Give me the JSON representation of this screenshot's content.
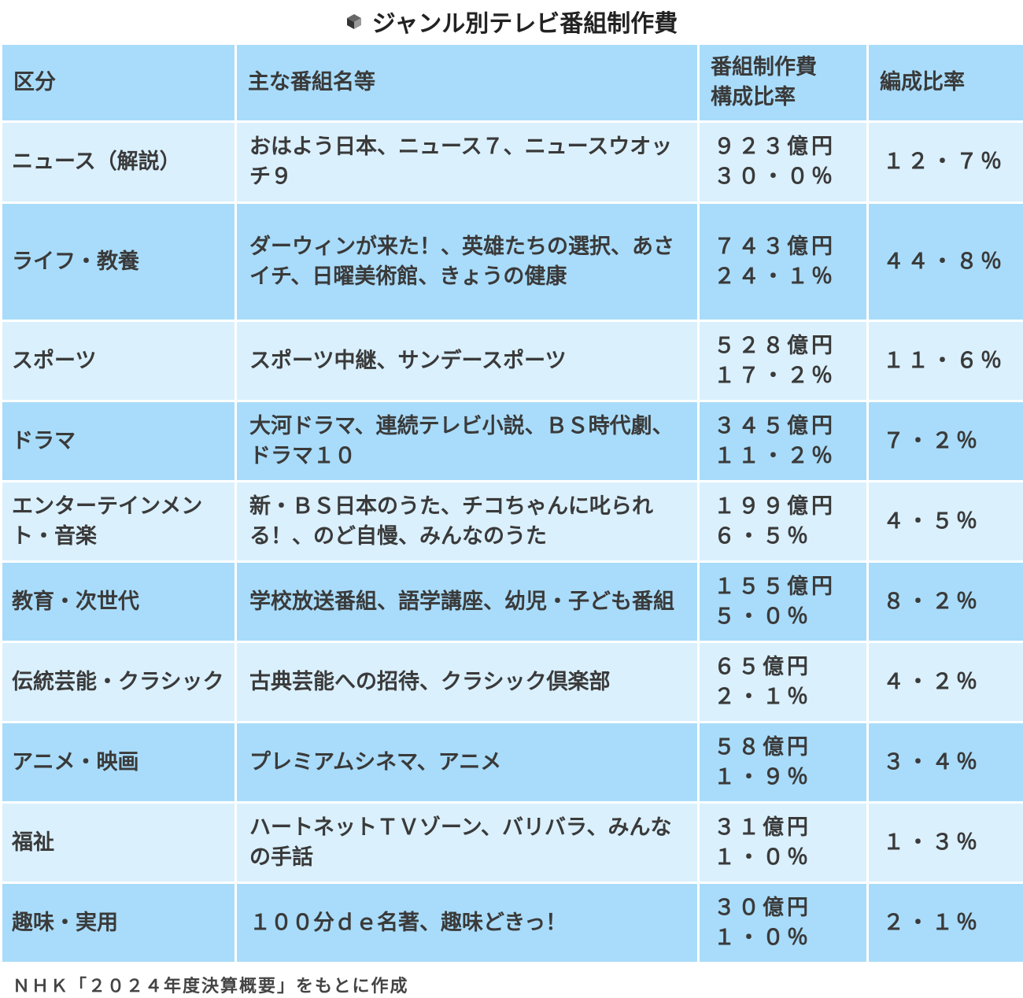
{
  "title": "ジャンル別テレビ番組制作費",
  "headers": {
    "category": "区分",
    "programs": "主な番組名等",
    "cost_line1": "番組制作費",
    "cost_line2": "構成比率",
    "ratio": "編成比率"
  },
  "rows": [
    {
      "category": "ニュース（解説）",
      "programs": "おはよう日本、ニュース７、ニュースウオッチ９",
      "cost": "９２３億円",
      "cost_ratio": "３０・０％",
      "ratio": "１２・７％"
    },
    {
      "category": "ライフ・教養",
      "programs": "ダーウィンが来た！、英雄たちの選択、あさイチ、日曜美術館、きょうの健康",
      "cost": "７４３億円",
      "cost_ratio": "２４・１％",
      "ratio": "４４・８％"
    },
    {
      "category": "スポーツ",
      "programs": "スポーツ中継、サンデースポーツ",
      "cost": "５２８億円",
      "cost_ratio": "１７・２％",
      "ratio": "１１・６％"
    },
    {
      "category": "ドラマ",
      "programs": "大河ドラマ、連続テレビ小説、ＢＳ時代劇、ドラマ１０",
      "cost": "３４５億円",
      "cost_ratio": "１１・２％",
      "ratio": "７・２％"
    },
    {
      "category": "エンターテインメント・音楽",
      "programs": "新・ＢＳ日本のうた、チコちゃんに叱られる！、のど自慢、みんなのうた",
      "cost": "１９９億円",
      "cost_ratio": "６・５％",
      "ratio": "４・５％"
    },
    {
      "category": "教育・次世代",
      "programs": "学校放送番組、語学講座、幼児・子ども番組",
      "cost": "１５５億円",
      "cost_ratio": "５・０％",
      "ratio": "８・２％"
    },
    {
      "category": "伝統芸能・クラシック",
      "programs": "古典芸能への招待、クラシック倶楽部",
      "cost": "６５億円",
      "cost_ratio": "２・１％",
      "ratio": "４・２％"
    },
    {
      "category": "アニメ・映画",
      "programs": "プレミアムシネマ、アニメ",
      "cost": "５８億円",
      "cost_ratio": "１・９％",
      "ratio": "３・４％"
    },
    {
      "category": "福祉",
      "programs": "ハートネットＴＶゾーン、バリバラ、みんなの手話",
      "cost": "３１億円",
      "cost_ratio": "１・０％",
      "ratio": "１・３％"
    },
    {
      "category": "趣味・実用",
      "programs": "１００分ｄｅ名著、趣味どきっ！",
      "cost": "３０億円",
      "cost_ratio": "１・０％",
      "ratio": "２・１％"
    }
  ],
  "source": "ＮＨＫ「２０２４年度決算概要」をもとに作成",
  "colors": {
    "header": "#a9dcfa",
    "row_light": "#daf0fd",
    "row_dark": "#a9dcfa"
  }
}
